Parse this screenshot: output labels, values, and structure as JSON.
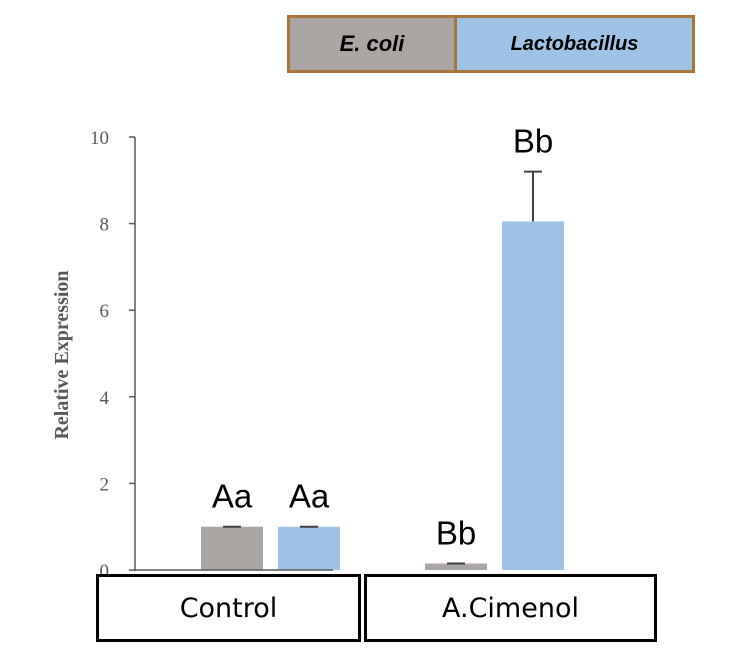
{
  "chart_data": {
    "type": "bar",
    "categories": [
      "Control",
      "A.Cimenol"
    ],
    "series": [
      {
        "name": "E. coli",
        "values": [
          1.0,
          0.15
        ],
        "errors": [
          0.0,
          0.0
        ],
        "labels": [
          "Aa",
          "Bb"
        ],
        "color": "#aba5a3"
      },
      {
        "name": "Lactobacillus",
        "values": [
          1.0,
          8.05
        ],
        "errors": [
          0.0,
          1.15
        ],
        "labels": [
          "Aa",
          "Bb"
        ],
        "color": "#9dc3e6"
      }
    ],
    "ylabel": "Relative Expression",
    "xlabel": "",
    "ylim": [
      0,
      10
    ],
    "yticks": [
      "0",
      "2",
      "4",
      "6",
      "8",
      "10"
    ],
    "legend_position": "top"
  }
}
